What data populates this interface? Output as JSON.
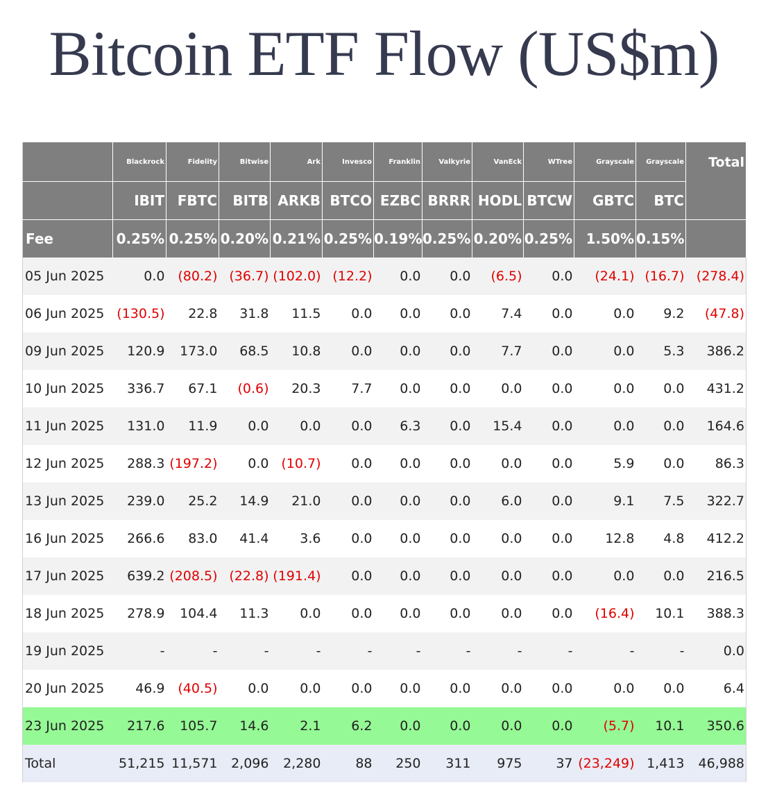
{
  "title": "Bitcoin ETF Flow (US$m)",
  "header": {
    "issuers": [
      "Blackrock",
      "Fidelity",
      "Bitwise",
      "Ark",
      "Invesco",
      "Franklin",
      "Valkyrie",
      "VanEck",
      "WTree",
      "Grayscale",
      "Grayscale"
    ],
    "total_label": "Total",
    "tickers": [
      "IBIT",
      "FBTC",
      "BITB",
      "ARKB",
      "BTCO",
      "EZBC",
      "BRRR",
      "HODL",
      "BTCW",
      "GBTC",
      "BTC"
    ],
    "fee_label": "Fee",
    "fees": [
      "0.25%",
      "0.25%",
      "0.20%",
      "0.21%",
      "0.25%",
      "0.19%",
      "0.25%",
      "0.20%",
      "0.25%",
      "1.50%",
      "0.15%"
    ]
  },
  "rows": [
    {
      "date": "05 Jun 2025",
      "values": [
        "0.0",
        "(80.2)",
        "(36.7)",
        "(102.0)",
        "(12.2)",
        "0.0",
        "0.0",
        "(6.5)",
        "0.0",
        "(24.1)",
        "(16.7)",
        "(278.4)"
      ]
    },
    {
      "date": "06 Jun 2025",
      "values": [
        "(130.5)",
        "22.8",
        "31.8",
        "11.5",
        "0.0",
        "0.0",
        "0.0",
        "7.4",
        "0.0",
        "0.0",
        "9.2",
        "(47.8)"
      ]
    },
    {
      "date": "09 Jun 2025",
      "values": [
        "120.9",
        "173.0",
        "68.5",
        "10.8",
        "0.0",
        "0.0",
        "0.0",
        "7.7",
        "0.0",
        "0.0",
        "5.3",
        "386.2"
      ]
    },
    {
      "date": "10 Jun 2025",
      "values": [
        "336.7",
        "67.1",
        "(0.6)",
        "20.3",
        "7.7",
        "0.0",
        "0.0",
        "0.0",
        "0.0",
        "0.0",
        "0.0",
        "431.2"
      ]
    },
    {
      "date": "11 Jun 2025",
      "values": [
        "131.0",
        "11.9",
        "0.0",
        "0.0",
        "0.0",
        "6.3",
        "0.0",
        "15.4",
        "0.0",
        "0.0",
        "0.0",
        "164.6"
      ]
    },
    {
      "date": "12 Jun 2025",
      "values": [
        "288.3",
        "(197.2)",
        "0.0",
        "(10.7)",
        "0.0",
        "0.0",
        "0.0",
        "0.0",
        "0.0",
        "5.9",
        "0.0",
        "86.3"
      ]
    },
    {
      "date": "13 Jun 2025",
      "values": [
        "239.0",
        "25.2",
        "14.9",
        "21.0",
        "0.0",
        "0.0",
        "0.0",
        "6.0",
        "0.0",
        "9.1",
        "7.5",
        "322.7"
      ]
    },
    {
      "date": "16 Jun 2025",
      "values": [
        "266.6",
        "83.0",
        "41.4",
        "3.6",
        "0.0",
        "0.0",
        "0.0",
        "0.0",
        "0.0",
        "12.8",
        "4.8",
        "412.2"
      ]
    },
    {
      "date": "17 Jun 2025",
      "values": [
        "639.2",
        "(208.5)",
        "(22.8)",
        "(191.4)",
        "0.0",
        "0.0",
        "0.0",
        "0.0",
        "0.0",
        "0.0",
        "0.0",
        "216.5"
      ]
    },
    {
      "date": "18 Jun 2025",
      "values": [
        "278.9",
        "104.4",
        "11.3",
        "0.0",
        "0.0",
        "0.0",
        "0.0",
        "0.0",
        "0.0",
        "(16.4)",
        "10.1",
        "388.3"
      ]
    },
    {
      "date": "19 Jun 2025",
      "values": [
        "-",
        "-",
        "-",
        "-",
        "-",
        "-",
        "-",
        "-",
        "-",
        "-",
        "-",
        "0.0"
      ]
    },
    {
      "date": "20 Jun 2025",
      "values": [
        "46.9",
        "(40.5)",
        "0.0",
        "0.0",
        "0.0",
        "0.0",
        "0.0",
        "0.0",
        "0.0",
        "0.0",
        "0.0",
        "6.4"
      ]
    },
    {
      "date": "23 Jun 2025",
      "values": [
        "217.6",
        "105.7",
        "14.6",
        "2.1",
        "6.2",
        "0.0",
        "0.0",
        "0.0",
        "0.0",
        "(5.7)",
        "10.1",
        "350.6"
      ],
      "highlight": true
    }
  ],
  "total_row": {
    "label": "Total",
    "values": [
      "51,215",
      "11,571",
      "2,096",
      "2,280",
      "88",
      "250",
      "311",
      "975",
      "37",
      "(23,249)",
      "1,413",
      "46,988"
    ]
  },
  "colors": {
    "header_bg": "#7f7f7f",
    "negative": "#e00000",
    "highlight": "#95f995",
    "total_bg": "#e8ecf6",
    "title": "#353a4f"
  }
}
